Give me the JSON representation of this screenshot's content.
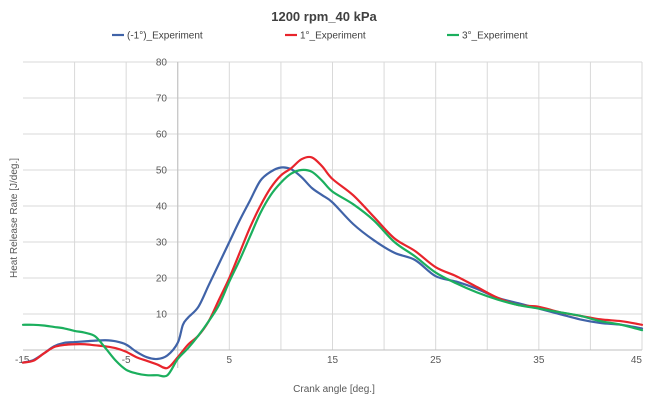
{
  "chart_data": {
    "type": "line",
    "title": "1200 rpm_40 kPa",
    "xlabel": "Crank angle [deg.]",
    "ylabel": "Heat Release Rate [J/deg.]",
    "xlim": [
      -15,
      45
    ],
    "ylim": [
      -5,
      80
    ],
    "xticks": [
      "-15",
      "-5",
      "5",
      "15",
      "25",
      "35",
      "45"
    ],
    "yticks": [
      "10",
      "20",
      "30",
      "40",
      "50",
      "60",
      "70",
      "80"
    ],
    "grid": true,
    "legend_position": "top",
    "series": [
      {
        "name": "(-1°)_Experiment",
        "color": "#4063A8",
        "x": [
          -15,
          -14,
          -13,
          -12,
          -11,
          -10,
          -9,
          -8,
          -7,
          -6,
          -5,
          -4,
          -3,
          -2,
          -1,
          0,
          0.5,
          1,
          2,
          3,
          4,
          5,
          6,
          7,
          8,
          9,
          10,
          11,
          12,
          13,
          14,
          15,
          17,
          19,
          21,
          23,
          25,
          27,
          29,
          31,
          33,
          35,
          37,
          39,
          41,
          43,
          45
        ],
        "y": [
          -3.5,
          -2.8,
          -1,
          1,
          2,
          2.2,
          2.4,
          2.6,
          2.7,
          2.4,
          1.5,
          -0.5,
          -2,
          -2.5,
          -1.5,
          2,
          7,
          9,
          12,
          18,
          24,
          30,
          36,
          41.5,
          47,
          49.5,
          50.7,
          50.2,
          48,
          45,
          43,
          41,
          35,
          30.5,
          27,
          25,
          20.5,
          19,
          17,
          14.5,
          13,
          11.5,
          10,
          8.5,
          7.5,
          7,
          6
        ]
      },
      {
        "name": "1°_Experiment",
        "color": "#E8242C",
        "x": [
          -15,
          -14,
          -13,
          -12,
          -11,
          -10,
          -9,
          -8,
          -7,
          -6,
          -5,
          -4,
          -3,
          -2,
          -1,
          0,
          1,
          2,
          3,
          4,
          5,
          6,
          7,
          8,
          9,
          10,
          11,
          12,
          13,
          14,
          15,
          17,
          19,
          21,
          23,
          25,
          27,
          29,
          31,
          33,
          35,
          37,
          39,
          41,
          43,
          45
        ],
        "y": [
          -3.5,
          -3,
          -1,
          0.8,
          1.4,
          1.6,
          1.6,
          1.3,
          1,
          0.5,
          -0.5,
          -2,
          -3,
          -4,
          -5,
          -2,
          1.5,
          4,
          8,
          14,
          20,
          27,
          34,
          40,
          45,
          48.5,
          50.5,
          53,
          53.5,
          51,
          47.5,
          43,
          37,
          31,
          27.5,
          23,
          20.5,
          17.5,
          14.5,
          12.5,
          12,
          10.5,
          9.5,
          8.5,
          8,
          7
        ]
      },
      {
        "name": "3°_Experiment",
        "color": "#1BAF5D",
        "x": [
          -15,
          -14,
          -13,
          -12,
          -11,
          -10,
          -9,
          -8,
          -7,
          -6,
          -5,
          -4,
          -3,
          -2,
          -1,
          0,
          1,
          2,
          3,
          4,
          5,
          6,
          7,
          8,
          9,
          10,
          11,
          12,
          13,
          14,
          15,
          17,
          19,
          21,
          23,
          25,
          27,
          29,
          31,
          33,
          35,
          37,
          39,
          41,
          43,
          45
        ],
        "y": [
          7,
          7,
          6.8,
          6.4,
          6,
          5.3,
          4.8,
          3.8,
          0.5,
          -3,
          -5.5,
          -6.5,
          -7,
          -7,
          -7,
          -2.5,
          0.5,
          4,
          8,
          12.5,
          19,
          25,
          31.5,
          38,
          43,
          46.5,
          49,
          50,
          49.5,
          47,
          44,
          40.5,
          36,
          30,
          26,
          21.5,
          18.5,
          16,
          14,
          12.5,
          11.5,
          10.5,
          9.5,
          8,
          7,
          5.5
        ]
      }
    ]
  }
}
